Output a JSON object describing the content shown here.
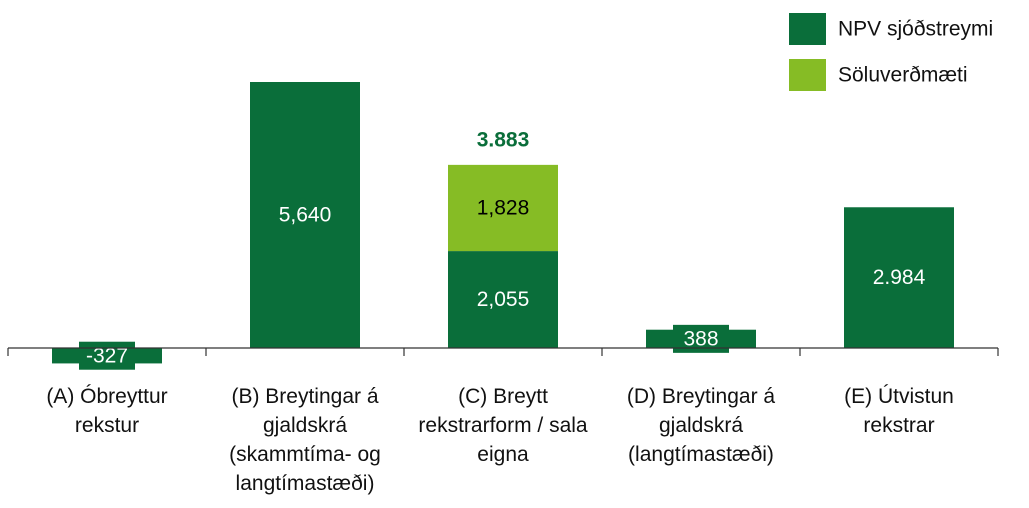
{
  "chart_data": {
    "type": "stacked_bar",
    "categories": [
      "(A) Óbreyttur rekstur",
      "(B) Breytingar á gjaldskrá (skammtíma- og langtímastæði)",
      "(C) Breytt rekstrarform / sala eigna",
      "(D) Breytingar á gjaldskrá (langtímastæði)",
      "(E) Útvistun rekstrar"
    ],
    "series": [
      {
        "name": "NPV sjóðstreymi",
        "color": "#0a6e3a",
        "values": [
          -327,
          5640,
          2055,
          388,
          2984
        ],
        "value_labels": [
          "-327",
          "5,640",
          "2,055",
          "388",
          "2.984"
        ],
        "label_color": "#ffffff"
      },
      {
        "name": "Söluverðmæti",
        "color": "#86bc25",
        "values": [
          null,
          null,
          1828,
          null,
          null
        ],
        "value_labels": [
          null,
          null,
          "1,828",
          null,
          null
        ],
        "label_color": "#000000"
      }
    ],
    "totals": {
      "values": [
        null,
        null,
        3883,
        null,
        null
      ],
      "value_labels": [
        null,
        null,
        "3.883",
        null,
        null
      ],
      "color": "#0a6e3a"
    },
    "legend": "top-right"
  }
}
